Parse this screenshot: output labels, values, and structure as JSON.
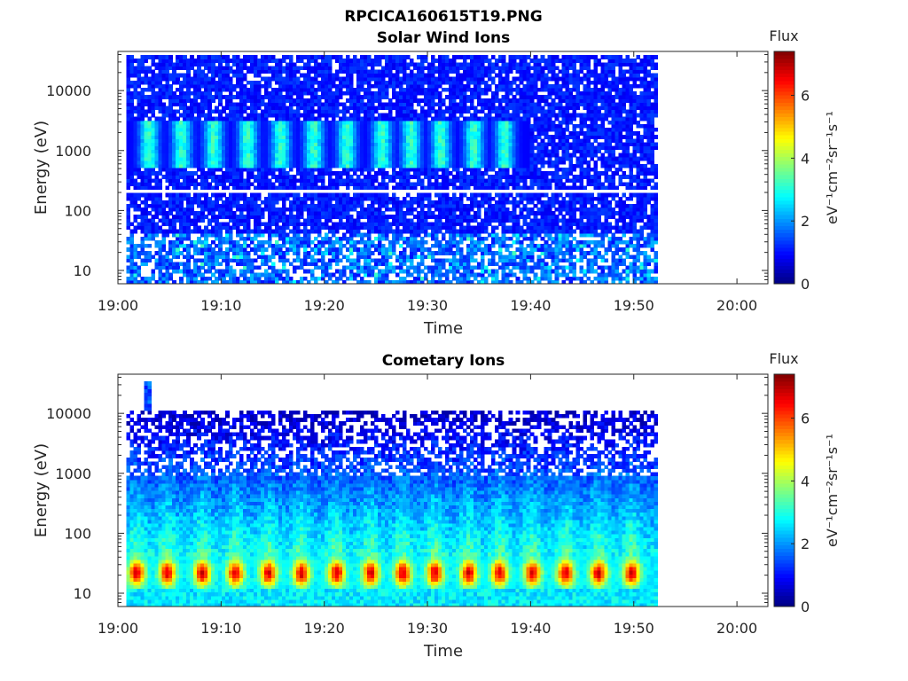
{
  "figure_title": "RPCICA160615T19.PNG",
  "chart_data": [
    {
      "type": "heatmap",
      "title": "Solar Wind Ions",
      "xlabel": "Time",
      "ylabel": "Energy (eV)",
      "x_tick_labels": [
        "19:00",
        "19:10",
        "19:20",
        "19:30",
        "19:40",
        "19:50",
        "20:00"
      ],
      "x_ticks_minutes": [
        0,
        10,
        20,
        30,
        40,
        50,
        60
      ],
      "xlim_minutes": [
        0,
        63
      ],
      "data_span_minutes": [
        0.8,
        52.3
      ],
      "y_scale": "log",
      "y_tick_labels": [
        "10",
        "100",
        "1000",
        "10000"
      ],
      "y_ticks": [
        10,
        100,
        1000,
        10000
      ],
      "ylim": [
        6,
        45000
      ],
      "colorbar": {
        "title": "Flux",
        "label": "eV⁻¹cm⁻²sr⁻¹s⁻¹",
        "colormap": "jet",
        "range": [
          0,
          7.4
        ],
        "tick_labels": [
          "0",
          "2",
          "4",
          "6"
        ],
        "ticks": [
          0,
          2,
          4,
          6
        ]
      },
      "features": {
        "pulse_band_eV": [
          500,
          3000
        ],
        "pulse_peak_flux": 3.2,
        "pulse_centers_minutes": [
          3,
          6.2,
          9.3,
          12.6,
          15.8,
          19,
          22.2,
          25.6,
          28.4,
          31.3,
          34.5,
          37.5
        ],
        "gap_line_eV": 200,
        "low_energy_band_eV": [
          6,
          40
        ],
        "low_energy_flux": 2.0,
        "background_flux": 0.8
      }
    },
    {
      "type": "heatmap",
      "title": "Cometary Ions",
      "xlabel": "Time",
      "ylabel": "Energy (eV)",
      "x_tick_labels": [
        "19:00",
        "19:10",
        "19:20",
        "19:30",
        "19:40",
        "19:50",
        "20:00"
      ],
      "x_ticks_minutes": [
        0,
        10,
        20,
        30,
        40,
        50,
        60
      ],
      "xlim_minutes": [
        0,
        63
      ],
      "data_span_minutes": [
        0.8,
        52.3
      ],
      "y_scale": "log",
      "y_tick_labels": [
        "10",
        "100",
        "1000",
        "10000"
      ],
      "y_ticks": [
        10,
        100,
        1000,
        10000
      ],
      "ylim": [
        6,
        45000
      ],
      "colorbar": {
        "title": "Flux",
        "label": "eV⁻¹cm⁻²sr⁻¹s⁻¹",
        "colormap": "jet",
        "range": [
          0,
          7.4
        ],
        "tick_labels": [
          "0",
          "2",
          "4",
          "6"
        ],
        "ticks": [
          0,
          2,
          4,
          6
        ]
      },
      "features": {
        "peak_band_eV": [
          15,
          35
        ],
        "peak_flux": 6.5,
        "peak_centers_minutes": [
          1.8,
          4.8,
          8.2,
          11.4,
          14.6,
          17.8,
          21.2,
          24.5,
          27.6,
          30.7,
          34,
          37,
          40.2,
          43.4,
          46.6,
          49.8
        ],
        "max_energy_eV": 11000,
        "spike_minute": 2.8,
        "spike_max_eV": 32000,
        "background_flux": 0.5
      }
    }
  ]
}
